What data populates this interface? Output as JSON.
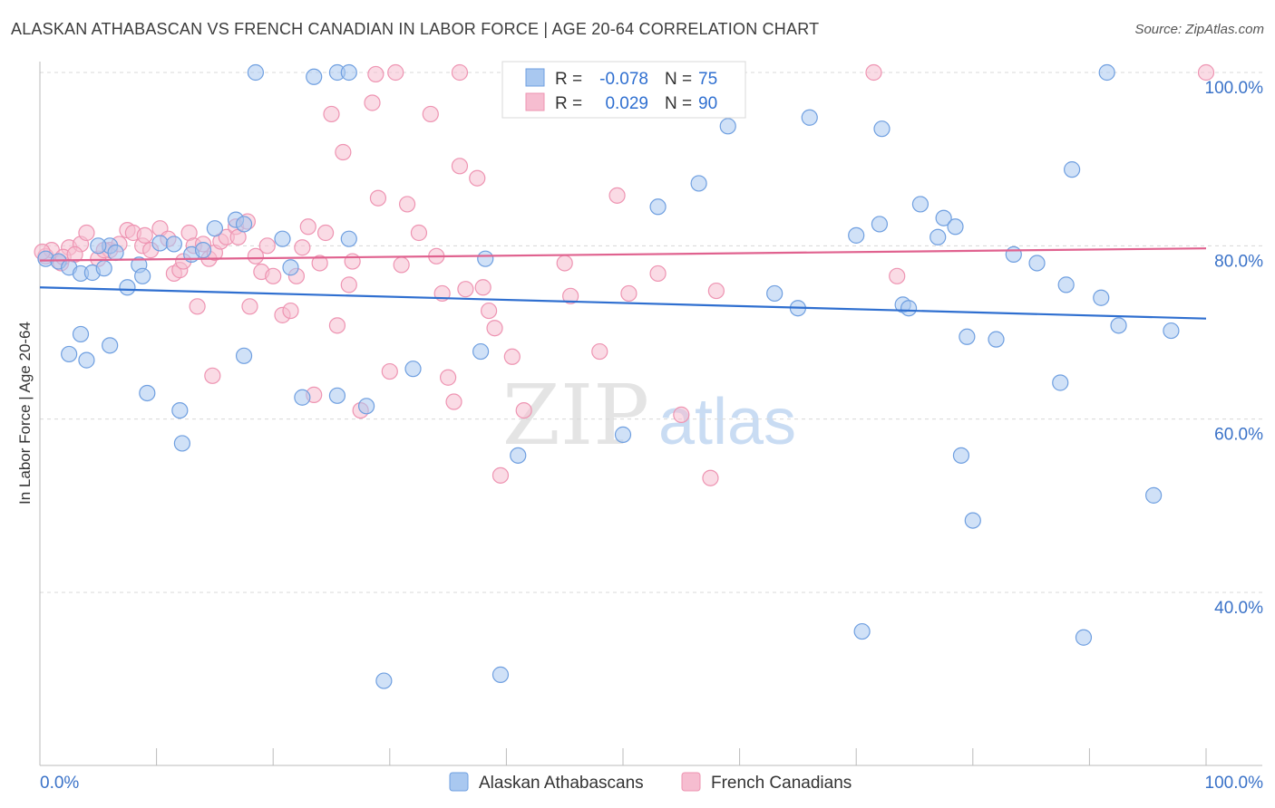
{
  "title": "ALASKAN ATHABASCAN VS FRENCH CANADIAN IN LABOR FORCE | AGE 20-64 CORRELATION CHART",
  "source": "Source: ZipAtlas.com",
  "watermark": {
    "zip": "ZIP",
    "atlas": "atlas"
  },
  "colors": {
    "blue_fill": "#a9c8f0",
    "blue_stroke": "#6f9fe0",
    "blue_line": "#2f6fd0",
    "pink_fill": "#f6bdd0",
    "pink_stroke": "#ee94b2",
    "pink_line": "#e0628f",
    "axis_text": "#3a72c8",
    "grid": "#d8d8d8"
  },
  "chart_data": {
    "type": "scatter",
    "title": "ALASKAN ATHABASCAN VS FRENCH CANADIAN IN LABOR FORCE | AGE 20-64 CORRELATION CHART",
    "xlabel": "",
    "ylabel": "In Labor Force | Age 20-64",
    "xlim": [
      0,
      100
    ],
    "ylim": [
      20,
      102
    ],
    "x_tick_labels": [
      "0.0%",
      "100.0%"
    ],
    "y_ticks": [
      40,
      60,
      80,
      100
    ],
    "y_tick_labels": [
      "40.0%",
      "60.0%",
      "80.0%",
      "100.0%"
    ],
    "legend_stats": [
      {
        "r_label": "R =",
        "r_value": "-0.078",
        "n_label": "N =",
        "n_value": "75"
      },
      {
        "r_label": "R =",
        "r_value": "0.029",
        "n_label": "N =",
        "n_value": "90"
      }
    ],
    "series": [
      {
        "name": "Alaskan Athabascans",
        "color": "blue",
        "trend": {
          "x": [
            0,
            100
          ],
          "y": [
            75.2,
            71.6
          ]
        },
        "points": [
          [
            0.5,
            78.5
          ],
          [
            1.6,
            78.2
          ],
          [
            2.5,
            77.5
          ],
          [
            3.5,
            76.8
          ],
          [
            4.5,
            76.9
          ],
          [
            5.5,
            77.4
          ],
          [
            6.0,
            80.0
          ],
          [
            6.5,
            79.2
          ],
          [
            7.5,
            75.2
          ],
          [
            8.5,
            77.8
          ],
          [
            8.8,
            76.5
          ],
          [
            10.3,
            80.3
          ],
          [
            15.0,
            82.0
          ],
          [
            16.8,
            83.0
          ],
          [
            17.5,
            82.5
          ],
          [
            20.8,
            80.8
          ],
          [
            21.5,
            77.5
          ],
          [
            26.5,
            80.8
          ],
          [
            38.2,
            78.5
          ],
          [
            2.5,
            67.5
          ],
          [
            3.5,
            69.8
          ],
          [
            4.0,
            66.8
          ],
          [
            6.0,
            68.5
          ],
          [
            9.2,
            63.0
          ],
          [
            12.0,
            61.0
          ],
          [
            12.2,
            57.2
          ],
          [
            17.5,
            67.3
          ],
          [
            22.5,
            62.5
          ],
          [
            25.5,
            62.7
          ],
          [
            28.0,
            61.5
          ],
          [
            32.0,
            65.8
          ],
          [
            37.8,
            67.8
          ],
          [
            41.0,
            55.8
          ],
          [
            50.0,
            58.2
          ],
          [
            53.0,
            84.5
          ],
          [
            56.5,
            87.2
          ],
          [
            59.0,
            93.8
          ],
          [
            63.0,
            74.5
          ],
          [
            65.0,
            72.8
          ],
          [
            66.0,
            94.8
          ],
          [
            70.0,
            81.2
          ],
          [
            70.5,
            35.5
          ],
          [
            72.0,
            82.5
          ],
          [
            72.2,
            93.5
          ],
          [
            74.0,
            73.2
          ],
          [
            74.5,
            72.8
          ],
          [
            75.5,
            84.8
          ],
          [
            77.0,
            81.0
          ],
          [
            77.5,
            83.2
          ],
          [
            78.5,
            82.2
          ],
          [
            79.5,
            69.5
          ],
          [
            80.0,
            48.3
          ],
          [
            82.0,
            69.2
          ],
          [
            83.5,
            79.0
          ],
          [
            85.5,
            78.0
          ],
          [
            87.5,
            64.2
          ],
          [
            88.0,
            75.5
          ],
          [
            88.5,
            88.8
          ],
          [
            89.5,
            34.8
          ],
          [
            91.0,
            74.0
          ],
          [
            91.5,
            100.0
          ],
          [
            92.5,
            70.8
          ],
          [
            95.5,
            51.2
          ],
          [
            97.0,
            70.2
          ],
          [
            18.5,
            100.0
          ],
          [
            23.5,
            99.5
          ],
          [
            25.5,
            100.0
          ],
          [
            26.5,
            100.0
          ],
          [
            29.5,
            29.8
          ],
          [
            39.5,
            30.5
          ],
          [
            79.0,
            55.8
          ],
          [
            11.5,
            80.2
          ],
          [
            13.0,
            79.0
          ],
          [
            14.0,
            79.5
          ],
          [
            5.0,
            80.0
          ]
        ]
      },
      {
        "name": "French Canadians",
        "color": "pink",
        "trend": {
          "x": [
            0,
            100
          ],
          "y": [
            78.3,
            79.7
          ]
        },
        "points": [
          [
            0.5,
            78.8
          ],
          [
            1.0,
            79.5
          ],
          [
            1.8,
            78.0
          ],
          [
            2.5,
            79.8
          ],
          [
            3.5,
            80.2
          ],
          [
            4.0,
            81.5
          ],
          [
            5.0,
            78.5
          ],
          [
            6.0,
            79.5
          ],
          [
            6.8,
            80.2
          ],
          [
            7.5,
            81.8
          ],
          [
            8.0,
            81.5
          ],
          [
            8.8,
            80.0
          ],
          [
            9.5,
            79.5
          ],
          [
            10.3,
            82.0
          ],
          [
            11.0,
            80.8
          ],
          [
            11.5,
            76.8
          ],
          [
            12.0,
            77.2
          ],
          [
            12.8,
            81.5
          ],
          [
            13.2,
            80.0
          ],
          [
            14.0,
            80.2
          ],
          [
            14.5,
            78.5
          ],
          [
            15.0,
            79.2
          ],
          [
            15.5,
            80.5
          ],
          [
            16.0,
            81.0
          ],
          [
            16.8,
            82.2
          ],
          [
            17.8,
            82.8
          ],
          [
            18.5,
            78.8
          ],
          [
            19.0,
            77.0
          ],
          [
            19.5,
            80.0
          ],
          [
            20.0,
            76.5
          ],
          [
            20.8,
            72.0
          ],
          [
            21.5,
            72.5
          ],
          [
            22.5,
            79.8
          ],
          [
            23.0,
            82.2
          ],
          [
            24.0,
            78.0
          ],
          [
            24.5,
            81.5
          ],
          [
            25.5,
            70.8
          ],
          [
            26.5,
            75.5
          ],
          [
            26.8,
            78.2
          ],
          [
            27.5,
            61.0
          ],
          [
            28.5,
            96.5
          ],
          [
            29.0,
            85.5
          ],
          [
            30.0,
            65.5
          ],
          [
            31.0,
            77.8
          ],
          [
            31.5,
            84.8
          ],
          [
            32.5,
            81.5
          ],
          [
            33.5,
            95.2
          ],
          [
            34.0,
            78.8
          ],
          [
            35.0,
            64.8
          ],
          [
            35.5,
            62.0
          ],
          [
            36.0,
            89.2
          ],
          [
            36.5,
            75.0
          ],
          [
            37.5,
            87.8
          ],
          [
            38.0,
            75.2
          ],
          [
            38.5,
            72.5
          ],
          [
            39.5,
            53.5
          ],
          [
            40.5,
            67.2
          ],
          [
            41.5,
            61.0
          ],
          [
            45.0,
            78.0
          ],
          [
            45.5,
            74.2
          ],
          [
            48.0,
            67.8
          ],
          [
            49.5,
            85.8
          ],
          [
            50.5,
            74.5
          ],
          [
            53.0,
            76.8
          ],
          [
            55.0,
            60.5
          ],
          [
            57.5,
            53.2
          ],
          [
            58.0,
            74.8
          ],
          [
            73.5,
            76.5
          ],
          [
            13.5,
            73.0
          ],
          [
            14.8,
            65.0
          ],
          [
            17.0,
            81.0
          ],
          [
            23.5,
            62.8
          ],
          [
            25.0,
            95.2
          ],
          [
            26.0,
            90.8
          ],
          [
            28.8,
            99.8
          ],
          [
            36.0,
            100.0
          ],
          [
            47.0,
            100.0
          ],
          [
            71.5,
            100.0
          ],
          [
            100,
            100
          ],
          [
            0.2,
            79.3
          ],
          [
            2.0,
            78.7
          ],
          [
            3.0,
            79.0
          ],
          [
            18.0,
            73.0
          ],
          [
            22.0,
            76.5
          ],
          [
            30.5,
            100.0
          ],
          [
            34.5,
            74.5
          ],
          [
            39.0,
            70.5
          ],
          [
            12.3,
            78.2
          ],
          [
            5.5,
            79.5
          ],
          [
            9.0,
            81.2
          ]
        ]
      }
    ]
  },
  "legend": {
    "items": [
      {
        "label": "Alaskan Athabascans",
        "color": "blue"
      },
      {
        "label": "French Canadians",
        "color": "pink"
      }
    ]
  }
}
